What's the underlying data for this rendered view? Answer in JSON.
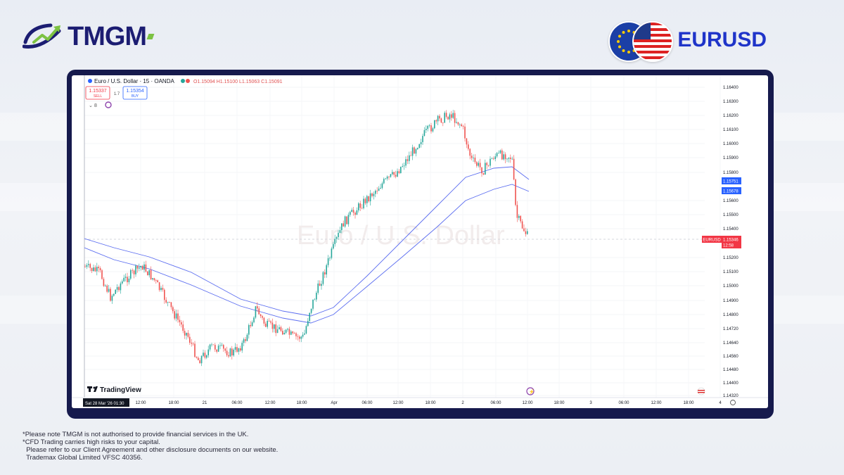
{
  "brand": {
    "name": "TMGM"
  },
  "pair": {
    "label": "EURUSD"
  },
  "chart_header": {
    "symbol_title": "Euro / U.S. Dollar · 15 · OANDA",
    "ohlc": "O1.15094 H1.15100 L1.15063 C1.15091",
    "sell_price": "1.15337",
    "sell_label": "SELL",
    "spread": "1.7",
    "buy_price": "1.15354",
    "buy_label": "BUY",
    "indicator_count": "8"
  },
  "watermark": "Euro / U.S. Dollar",
  "tradingview_label": "TradingView",
  "date_label": "Sat 28 Mar '26  01:30",
  "chart_data": {
    "type": "candlestick",
    "y_ticks": [
      "1.16400",
      "1.16300",
      "1.16200",
      "1.16100",
      "1.16000",
      "1.15900",
      "1.15800",
      "1.15600",
      "1.15500",
      "1.15400",
      "1.15200",
      "1.15100",
      "1.15000",
      "1.14900",
      "1.14800",
      "1.14720",
      "1.14640",
      "1.14560",
      "1.14480",
      "1.14400",
      "1.14320"
    ],
    "x_ticks": [
      "12:00",
      "18:00",
      "21",
      "06:00",
      "12:00",
      "18:00",
      "Apr",
      "06:00",
      "12:00",
      "18:00",
      "2",
      "06:00",
      "12:00",
      "18:00",
      "3",
      "06:00",
      "12:00",
      "18:00",
      "4"
    ],
    "price_tags": [
      {
        "label": "1.15751",
        "color": "#2962ff"
      },
      {
        "label": "1.15678",
        "color": "#2962ff"
      },
      {
        "label": "1.15346",
        "color": "#f23645"
      }
    ],
    "symbol_tag": "EURUSD",
    "countdown": "12:58",
    "current_price": 1.15346,
    "series": [
      {
        "type": "moving_average",
        "color": "#5b6df0"
      },
      {
        "type": "moving_average",
        "color": "#5b6df0"
      }
    ],
    "up_color": "#26a69a",
    "down_color": "#ef5350"
  },
  "disclaimer": [
    "*Please note TMGM is not authorised to provide financial services in the UK.",
    "*CFD Trading carries high risks to your capital.",
    "  Please refer to our Client Agreement and other disclosure documents on our website.",
    "  Trademax Global Limited VFSC 40356."
  ]
}
